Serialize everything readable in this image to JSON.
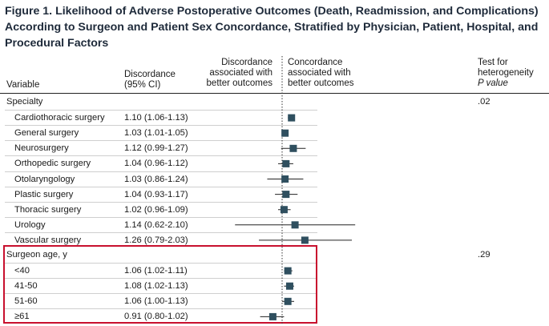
{
  "title": "Figure 1. Likelihood of Adverse Postoperative Outcomes (Death, Readmission, and Complications) According to Surgeon and Patient Sex Concordance, Stratified by Physician, Patient, Hospital, and Procedural Factors",
  "headers": {
    "variable": "Variable",
    "discordance_line1": "Discordance",
    "discordance_line2": "(95% CI)",
    "left_line1": "Discordance",
    "left_line2": "associated with",
    "left_line3": "better outcomes",
    "right_line1": "Concordance",
    "right_line2": "associated with",
    "right_line3": "better outcomes",
    "test_line1": "Test for",
    "test_line2": "heterogeneity",
    "test_line3": "P value"
  },
  "colors": {
    "marker": "#2f4f5f",
    "highlight": "#c8102e"
  },
  "chart_data": {
    "type": "forest",
    "reference_value": 1.0,
    "groups": [
      {
        "label": "Specialty",
        "p_value": ".02",
        "rows": [
          {
            "label": "Cardiothoracic surgery",
            "ci_text": "1.10 (1.06-1.13)",
            "estimate": 1.1,
            "lower": 1.06,
            "upper": 1.13
          },
          {
            "label": "General surgery",
            "ci_text": "1.03 (1.01-1.05)",
            "estimate": 1.03,
            "lower": 1.01,
            "upper": 1.05
          },
          {
            "label": "Neurosurgery",
            "ci_text": "1.12 (0.99-1.27)",
            "estimate": 1.12,
            "lower": 0.99,
            "upper": 1.27
          },
          {
            "label": "Orthopedic surgery",
            "ci_text": "1.04 (0.96-1.12)",
            "estimate": 1.04,
            "lower": 0.96,
            "upper": 1.12
          },
          {
            "label": "Otolaryngology",
            "ci_text": "1.03 (0.86-1.24)",
            "estimate": 1.03,
            "lower": 0.86,
            "upper": 1.24
          },
          {
            "label": "Plastic surgery",
            "ci_text": "1.04 (0.93-1.17)",
            "estimate": 1.04,
            "lower": 0.93,
            "upper": 1.17
          },
          {
            "label": "Thoracic surgery",
            "ci_text": "1.02 (0.96-1.09)",
            "estimate": 1.02,
            "lower": 0.96,
            "upper": 1.09
          },
          {
            "label": "Urology",
            "ci_text": "1.14 (0.62-2.10)",
            "estimate": 1.14,
            "lower": 0.62,
            "upper": 2.1
          },
          {
            "label": "Vascular surgery",
            "ci_text": "1.26 (0.79-2.03)",
            "estimate": 1.26,
            "lower": 0.79,
            "upper": 2.03
          }
        ]
      },
      {
        "label": "Surgeon age, y",
        "p_value": ".29",
        "highlighted": true,
        "rows": [
          {
            "label": "<40",
            "ci_text": "1.06 (1.02-1.11)",
            "estimate": 1.06,
            "lower": 1.02,
            "upper": 1.11
          },
          {
            "label": "41-50",
            "ci_text": "1.08 (1.02-1.13)",
            "estimate": 1.08,
            "lower": 1.02,
            "upper": 1.13
          },
          {
            "label": "51-60",
            "ci_text": "1.06 (1.00-1.13)",
            "estimate": 1.06,
            "lower": 1.0,
            "upper": 1.13
          },
          {
            "label": "≥61",
            "ci_text": "0.91 (0.80-1.02)",
            "estimate": 0.91,
            "lower": 0.8,
            "upper": 1.02
          }
        ]
      }
    ]
  }
}
